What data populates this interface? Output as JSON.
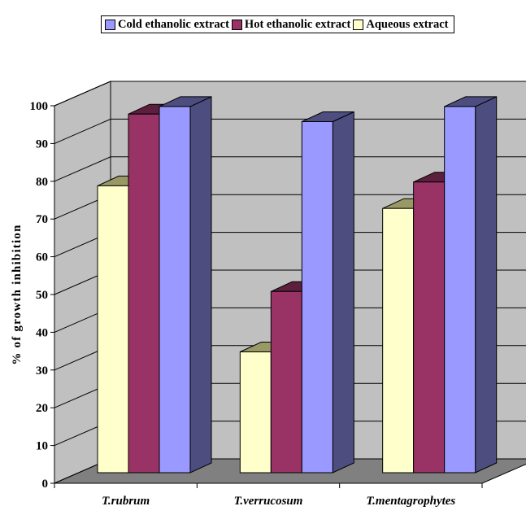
{
  "chart_data": {
    "type": "bar",
    "three_d": true,
    "categories": [
      "T.rubrum",
      "T.verrucosum",
      "T.mentagrophytes"
    ],
    "series": [
      {
        "name": "Aqueous extract",
        "values": [
          76,
          32,
          70
        ],
        "color": "#FFFFCC",
        "side_color": "#999966"
      },
      {
        "name": "Hot ethanolic extract",
        "values": [
          95,
          48,
          77
        ],
        "color": "#993366",
        "side_color": "#5C1F3D"
      },
      {
        "name": "Cold ethanolic extract",
        "values": [
          97,
          93,
          97
        ],
        "color": "#9999FF",
        "side_color": "#4D4D80"
      }
    ],
    "legend_order": [
      "Cold ethanolic extract",
      "Hot ethanolic extract",
      "Aqueous extract"
    ],
    "legend_position": "top",
    "ylabel": "% of growth inhibition",
    "xlabel": "",
    "ylim": [
      0,
      100
    ],
    "yticks": [
      0,
      10,
      20,
      30,
      40,
      50,
      60,
      70,
      80,
      90,
      100
    ],
    "grid": true,
    "wall_color": "#C0C0C0",
    "floor_color": "#808080"
  }
}
